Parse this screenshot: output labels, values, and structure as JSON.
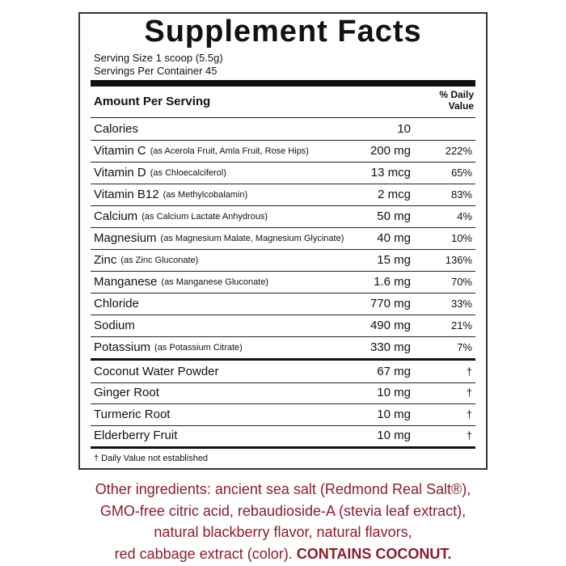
{
  "header": {
    "title": "Supplement Facts",
    "serving_size": "Serving Size 1 scoop (5.5g)",
    "servings_per_container": "Servings Per Container 45"
  },
  "table": {
    "amount_heading": "Amount Per Serving",
    "dv_heading": "% Daily Value",
    "rows": [
      {
        "name": "Calories",
        "amount": "10"
      },
      {
        "name": "Vitamin C",
        "note": "(as Acerola Fruit, Amla Fruit, Rose Hips)",
        "amount": "200 mg",
        "dv": "222%"
      },
      {
        "name": "Vitamin D",
        "note": "(as Chloecalciferol)",
        "amount": "13 mcg",
        "dv": "65%"
      },
      {
        "name": "Vitamin B12",
        "note": "(as Methylcobalamin)",
        "amount": "2 mcg",
        "dv": "83%"
      },
      {
        "name": "Calcium",
        "note": "(as Calcium Lactate Anhydrous)",
        "amount": "50 mg",
        "dv": "4%"
      },
      {
        "name": "Magnesium",
        "note": "(as Magnesium Malate, Magnesium Glycinate)",
        "amount": "40 mg",
        "dv": "10%"
      },
      {
        "name": "Zinc",
        "note": "(as Zinc Gluconate)",
        "amount": "15 mg",
        "dv": "136%"
      },
      {
        "name": "Manganese",
        "note": "(as Manganese Gluconate)",
        "amount": "1.6 mg",
        "dv": "70%"
      },
      {
        "name": "Chloride",
        "amount": "770 mg",
        "dv": "33%"
      },
      {
        "name": "Sodium",
        "amount": "490 mg",
        "dv": "21%"
      },
      {
        "name": "Potassium",
        "note": "(as Potassium Citrate)",
        "amount": "330 mg",
        "dv": "7%"
      }
    ],
    "other_rows": [
      {
        "name": "Coconut Water Powder",
        "amount": "67 mg",
        "dv": "†"
      },
      {
        "name": "Ginger Root",
        "amount": "10 mg",
        "dv": "†"
      },
      {
        "name": "Turmeric Root",
        "amount": "10 mg",
        "dv": "†"
      },
      {
        "name": "Elderberry Fruit",
        "amount": "10 mg",
        "dv": "†"
      }
    ],
    "footnote": "† Daily Value not established"
  },
  "other_ingredients": {
    "lines": [
      "Other ingredients: ancient sea salt (Redmond Real Salt®),",
      "GMO-free citric acid, rebaudioside-A (stevia leaf extract),",
      "natural blackberry flavor, natural flavors,",
      "red cabbage extract (color)."
    ],
    "emphasis": "CONTAINS COCONUT."
  }
}
